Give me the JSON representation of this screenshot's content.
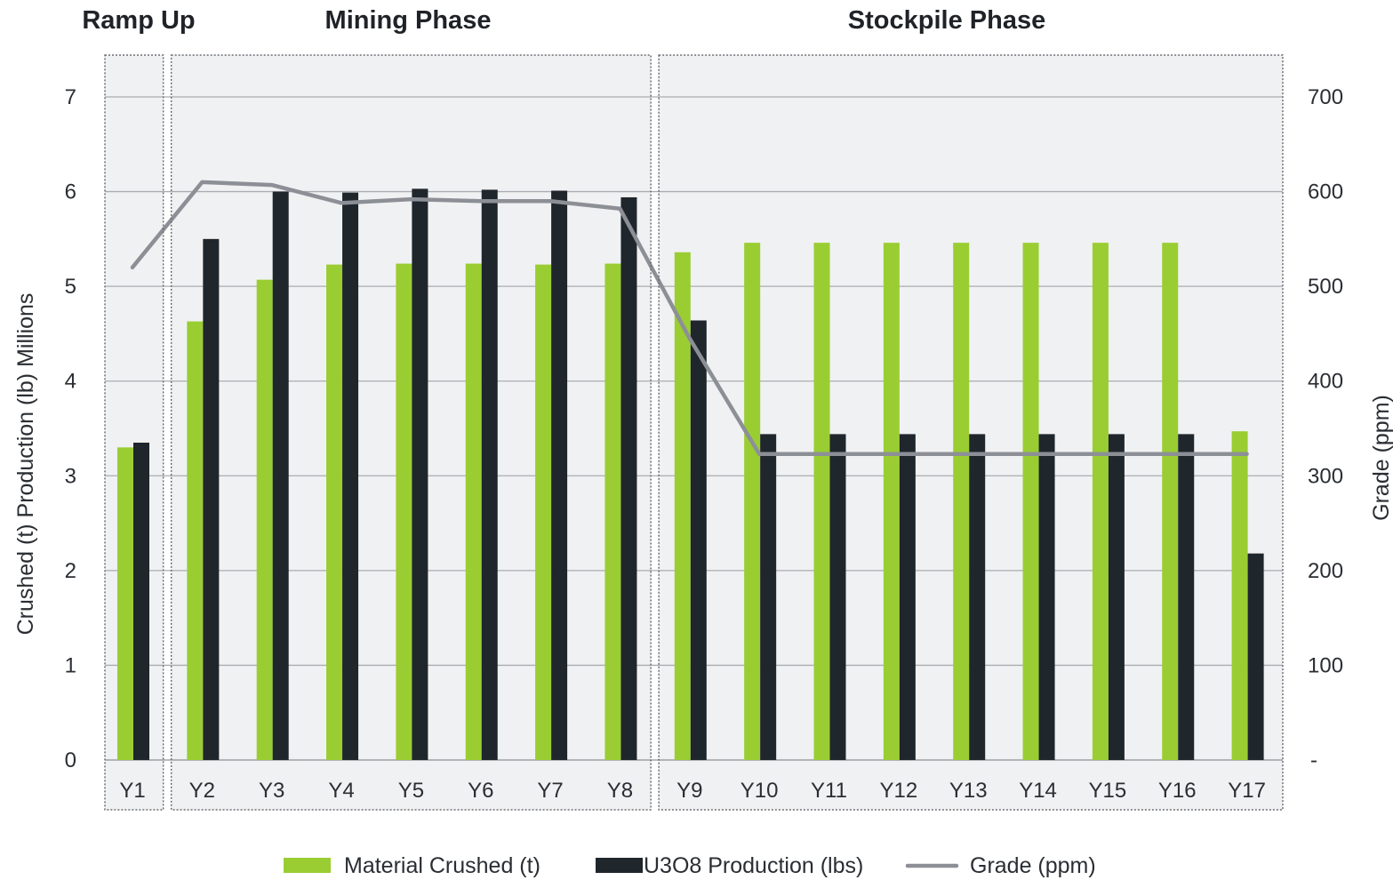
{
  "phases": [
    {
      "label": "Ramp Up",
      "from": 0,
      "to": 0
    },
    {
      "label": "Mining Phase",
      "from": 1,
      "to": 7
    },
    {
      "label": "Stockpile Phase",
      "from": 8,
      "to": 16
    }
  ],
  "chart_data": {
    "type": "bar",
    "categories": [
      "Y1",
      "Y2",
      "Y3",
      "Y4",
      "Y5",
      "Y6",
      "Y7",
      "Y8",
      "Y9",
      "Y10",
      "Y11",
      "Y12",
      "Y13",
      "Y14",
      "Y15",
      "Y16",
      "Y17"
    ],
    "series": [
      {
        "name": "Material Crushed (t)",
        "type": "bar",
        "axis": "left",
        "color": "#9acd32",
        "values": [
          3.3,
          4.63,
          5.07,
          5.23,
          5.24,
          5.24,
          5.23,
          5.24,
          5.36,
          5.46,
          5.46,
          5.46,
          5.46,
          5.46,
          5.46,
          5.46,
          3.47
        ]
      },
      {
        "name": "U3O8 Production (lbs)",
        "type": "bar",
        "axis": "left",
        "color": "#1f262c",
        "values": [
          3.35,
          5.5,
          6.0,
          5.99,
          6.03,
          6.02,
          6.01,
          5.94,
          4.64,
          3.44,
          3.44,
          3.44,
          3.44,
          3.44,
          3.44,
          3.44,
          2.18
        ]
      },
      {
        "name": "Grade (ppm)",
        "type": "line",
        "axis": "right",
        "color": "#8c9096",
        "values": [
          520,
          610,
          607,
          588,
          592,
          590,
          590,
          582,
          445,
          323,
          323,
          323,
          323,
          323,
          323,
          323,
          323
        ]
      }
    ],
    "y_left": {
      "label": "Crushed (t) Production (lb) Millions",
      "ylim": [
        0,
        7
      ],
      "ticks": [
        "0",
        "1",
        "2",
        "3",
        "4",
        "5",
        "6",
        "7"
      ]
    },
    "y_right": {
      "label": "Grade (ppm)",
      "ylim": [
        0,
        700
      ],
      "ticks": [
        "-",
        "100",
        "200",
        "300",
        "400",
        "500",
        "600",
        "700"
      ]
    },
    "grid": true,
    "legend_position": "bottom-center"
  }
}
